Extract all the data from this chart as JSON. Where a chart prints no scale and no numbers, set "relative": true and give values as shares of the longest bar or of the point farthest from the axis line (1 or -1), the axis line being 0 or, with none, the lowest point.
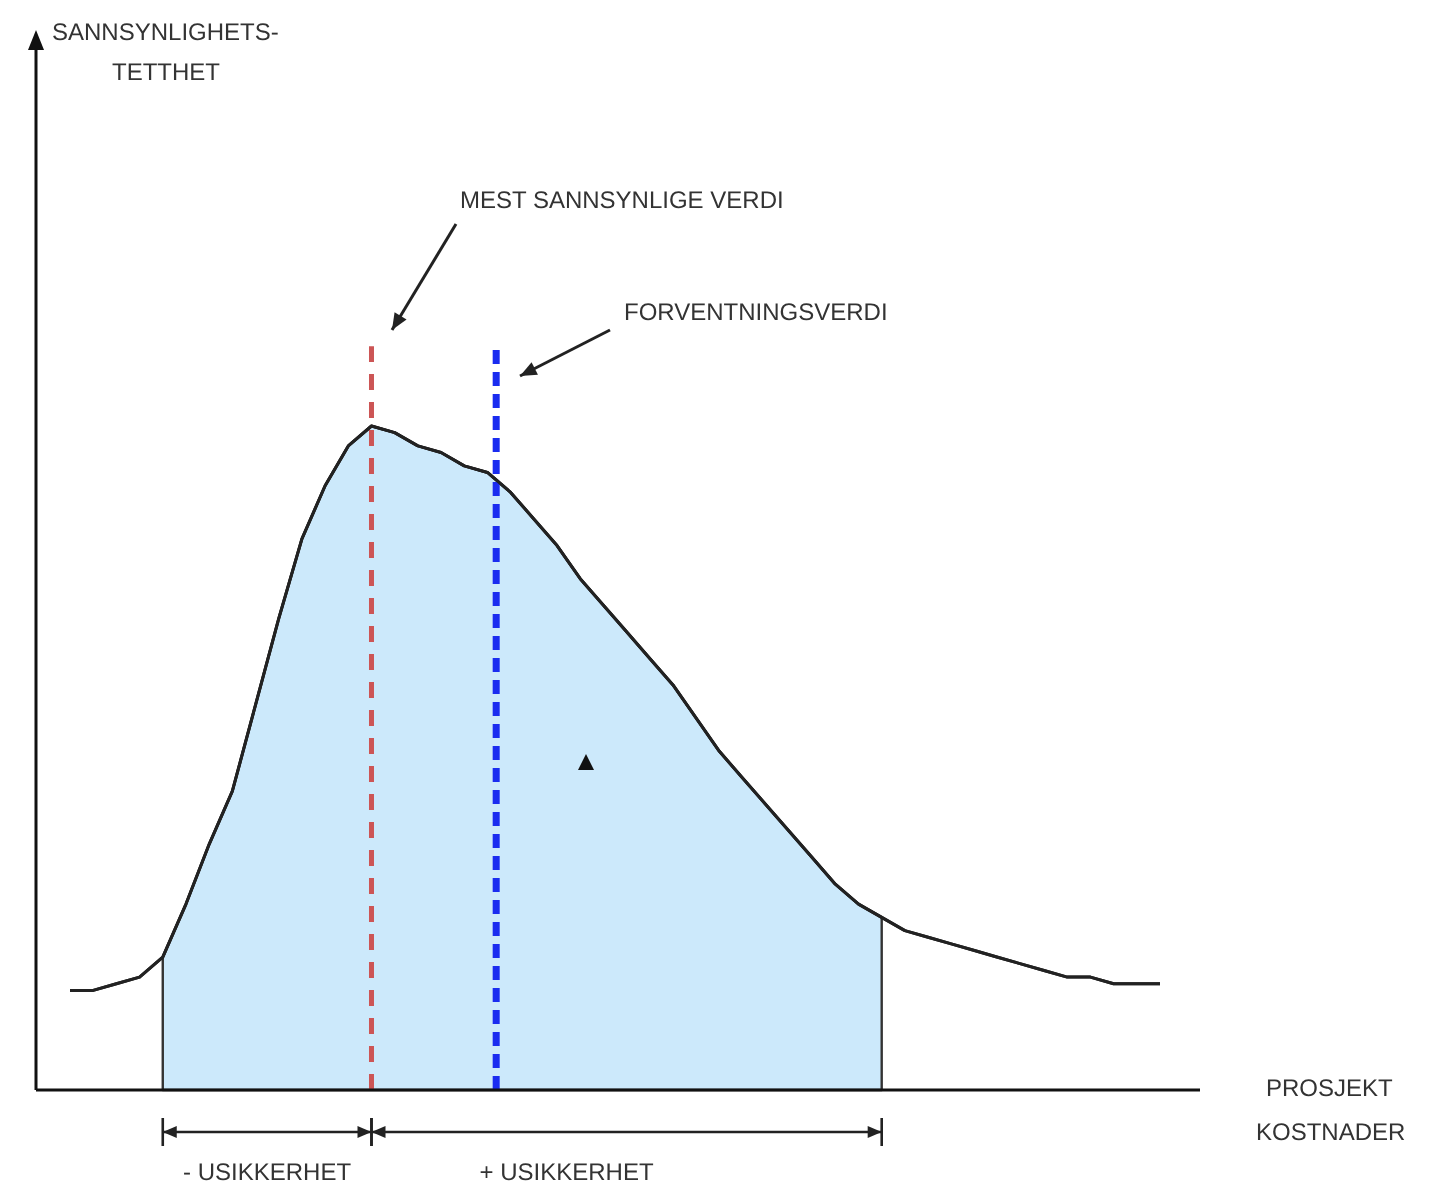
{
  "chart_data": {
    "type": "line",
    "relative": true,
    "xlabel": "PROSJEKT\nKOSTNADER",
    "line_style": "solid",
    "categories": [
      null,
      null,
      null,
      null,
      null,
      null,
      null,
      null,
      null,
      null,
      null,
      null,
      null,
      null,
      null,
      null,
      null,
      null,
      null,
      null,
      null,
      null,
      null,
      null,
      null,
      null,
      null,
      null,
      null,
      null,
      null,
      null,
      null,
      null,
      null,
      null,
      null,
      null,
      null,
      null,
      null,
      null,
      null,
      null,
      null,
      null,
      null,
      null
    ],
    "series": [
      {
        "color": "#222222",
        "values": [
          0.15,
          0.15,
          0.16,
          0.17,
          0.2,
          0.28,
          0.37,
          0.45,
          0.58,
          0.71,
          0.83,
          0.91,
          0.97,
          1,
          0.99,
          0.97,
          0.96,
          0.94,
          0.93,
          0.9,
          0.86,
          0.82,
          0.77,
          0.73,
          0.69,
          0.65,
          0.61,
          0.56,
          0.51,
          0.47,
          0.43,
          0.39,
          0.35,
          0.31,
          0.28,
          0.26,
          0.24,
          0.23,
          0.22,
          0.21,
          0.2,
          0.19,
          0.18,
          0.17,
          0.17,
          0.16,
          0.16,
          0.16
        ]
      },
      {
        "type": "area",
        "color": "#cce9fb",
        "values": [
          null,
          null,
          null,
          null,
          0.2,
          0.28,
          0.37,
          0.45,
          0.58,
          0.71,
          0.83,
          0.91,
          0.97,
          1,
          0.99,
          0.97,
          0.96,
          0.94,
          0.93,
          0.9,
          0.86,
          0.82,
          0.77,
          0.73,
          0.69,
          0.65,
          0.61,
          0.56,
          0.51,
          0.47,
          0.43,
          0.39,
          0.35,
          0.31,
          0.28,
          0.26,
          null,
          null,
          null,
          null,
          null,
          null,
          null,
          null,
          null,
          null,
          null,
          null
        ]
      }
    ],
    "annotations": [
      "MEST SANNSYNLIGE VERDI",
      "FORVENTNINGSVERDI",
      "- USIKKERHET",
      "+ USIKKERHET",
      "SANNSYNLIGHETS-\nTETTHET"
    ]
  }
}
